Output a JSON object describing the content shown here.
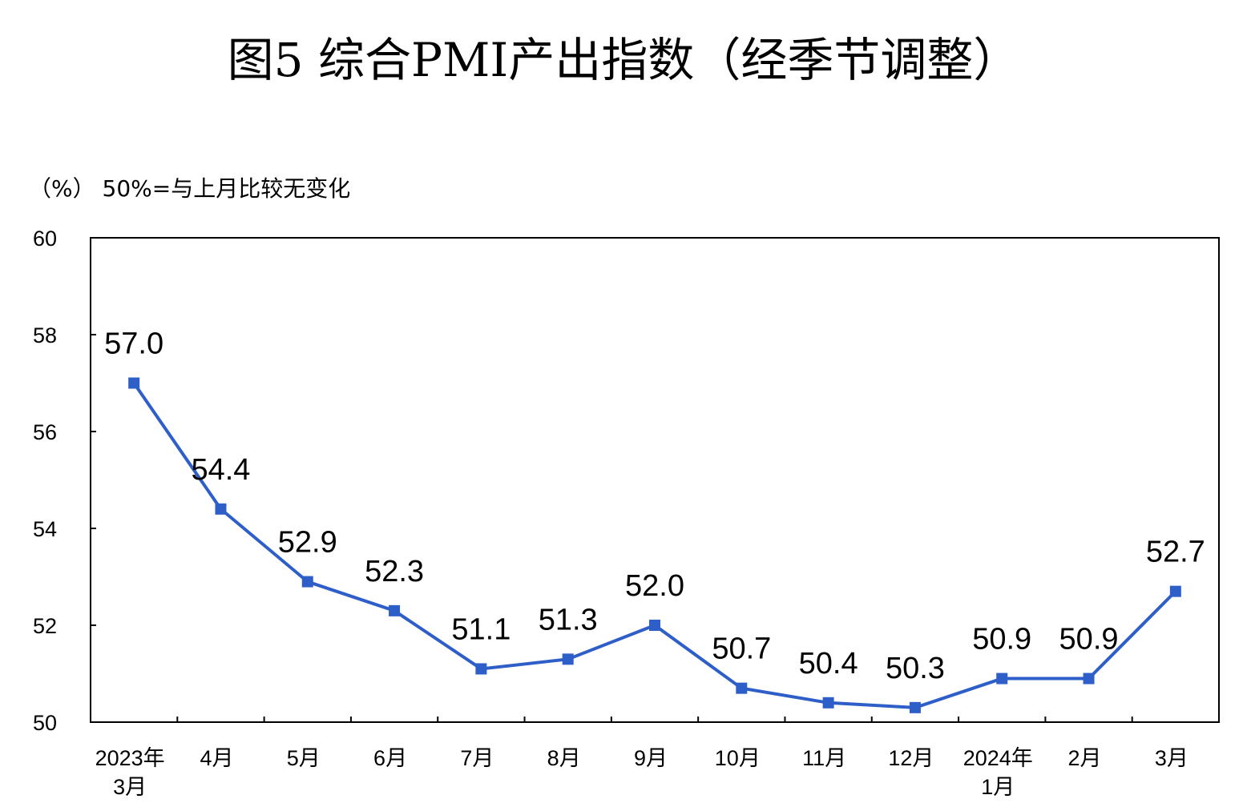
{
  "title": "图5  综合PMI产出指数（经季节调整）",
  "unit_note": "（%）  50%=与上月比较无变化",
  "chart_data": {
    "type": "line",
    "title": "图5  综合PMI产出指数（经季节调整）",
    "ylabel": "（%）",
    "note": "50%=与上月比较无变化",
    "ylim": [
      50,
      60
    ],
    "yticks": [
      "50",
      "52",
      "54",
      "56",
      "58",
      "60"
    ],
    "categories": [
      [
        "2023年",
        "3月"
      ],
      [
        "4月"
      ],
      [
        "5月"
      ],
      [
        "6月"
      ],
      [
        "7月"
      ],
      [
        "8月"
      ],
      [
        "9月"
      ],
      [
        "10月"
      ],
      [
        "11月"
      ],
      [
        "12月"
      ],
      [
        "2024年",
        "1月"
      ],
      [
        "2月"
      ],
      [
        "3月"
      ]
    ],
    "values": [
      57.0,
      54.4,
      52.9,
      52.3,
      51.1,
      51.3,
      52.0,
      50.7,
      50.4,
      50.3,
      50.9,
      50.9,
      52.7
    ],
    "value_labels": [
      "57.0",
      "54.4",
      "52.9",
      "52.3",
      "51.1",
      "51.3",
      "52.0",
      "50.7",
      "50.4",
      "50.3",
      "50.9",
      "50.9",
      "52.7"
    ],
    "line_color": "#2e5fc9",
    "grid": false,
    "legend": "none"
  }
}
